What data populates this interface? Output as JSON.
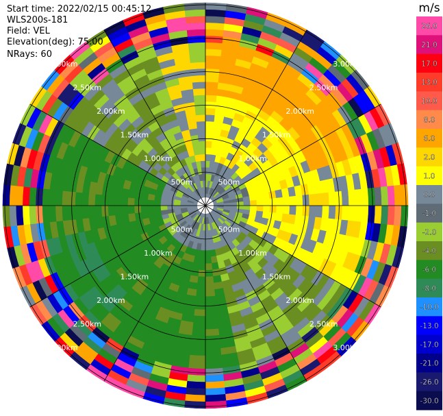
{
  "header": {
    "start_time": "Start time: 2022/02/15 00:45:12",
    "instrument": "WLS200s-181",
    "field": "Field: VEL",
    "elevation": "Elevation(deg): 75.00",
    "nrays": "NRays: 60"
  },
  "chart_data": {
    "type": "heatmap",
    "projection": "polar (PPI)",
    "rays": 60,
    "range_rings": [
      {
        "label": "500m"
      },
      {
        "label": "1.00km"
      },
      {
        "label": "1.50km"
      },
      {
        "label": "2.00km"
      },
      {
        "label": "2.50km"
      },
      {
        "label": "3.00km"
      }
    ],
    "colorbar": {
      "unit": "m/s",
      "tick_labels": [
        "26.0",
        "21.0",
        "17.0",
        "13.0",
        "10.0",
        "8.0",
        "6.0",
        "2.0",
        "1.0",
        "0.0",
        "-1.0",
        "-2.0",
        "-4.0",
        "-6.0",
        "-8.0",
        "-10.0",
        "-13.0",
        "-17.0",
        "-21.0",
        "-26.0",
        "-30.0"
      ],
      "colors": [
        "#ff4aa8",
        "#e0107a",
        "#ff0010",
        "#ff3b2a",
        "#ff5a4a",
        "#ff8a4a",
        "#ffa500",
        "#ffd700",
        "#ffff00",
        "#778899",
        "#5f6b75",
        "#9acd32",
        "#6b8e23",
        "#228b22",
        "#2e8b57",
        "#1e90ff",
        "#0000ff",
        "#0000cd",
        "#00008b",
        "#191970",
        "#0b0b50"
      ]
    },
    "sector_pattern": {
      "near_range": "grey/dark-grey values (about -1 to 1 m/s) around the center",
      "north_east": "yellow and orange, positive 2 to 6 m/s",
      "west_south": "olive and green, negative -4 to -8 m/s",
      "outer_ring": "noisy mixed colours beyond about 2.5 km"
    }
  }
}
